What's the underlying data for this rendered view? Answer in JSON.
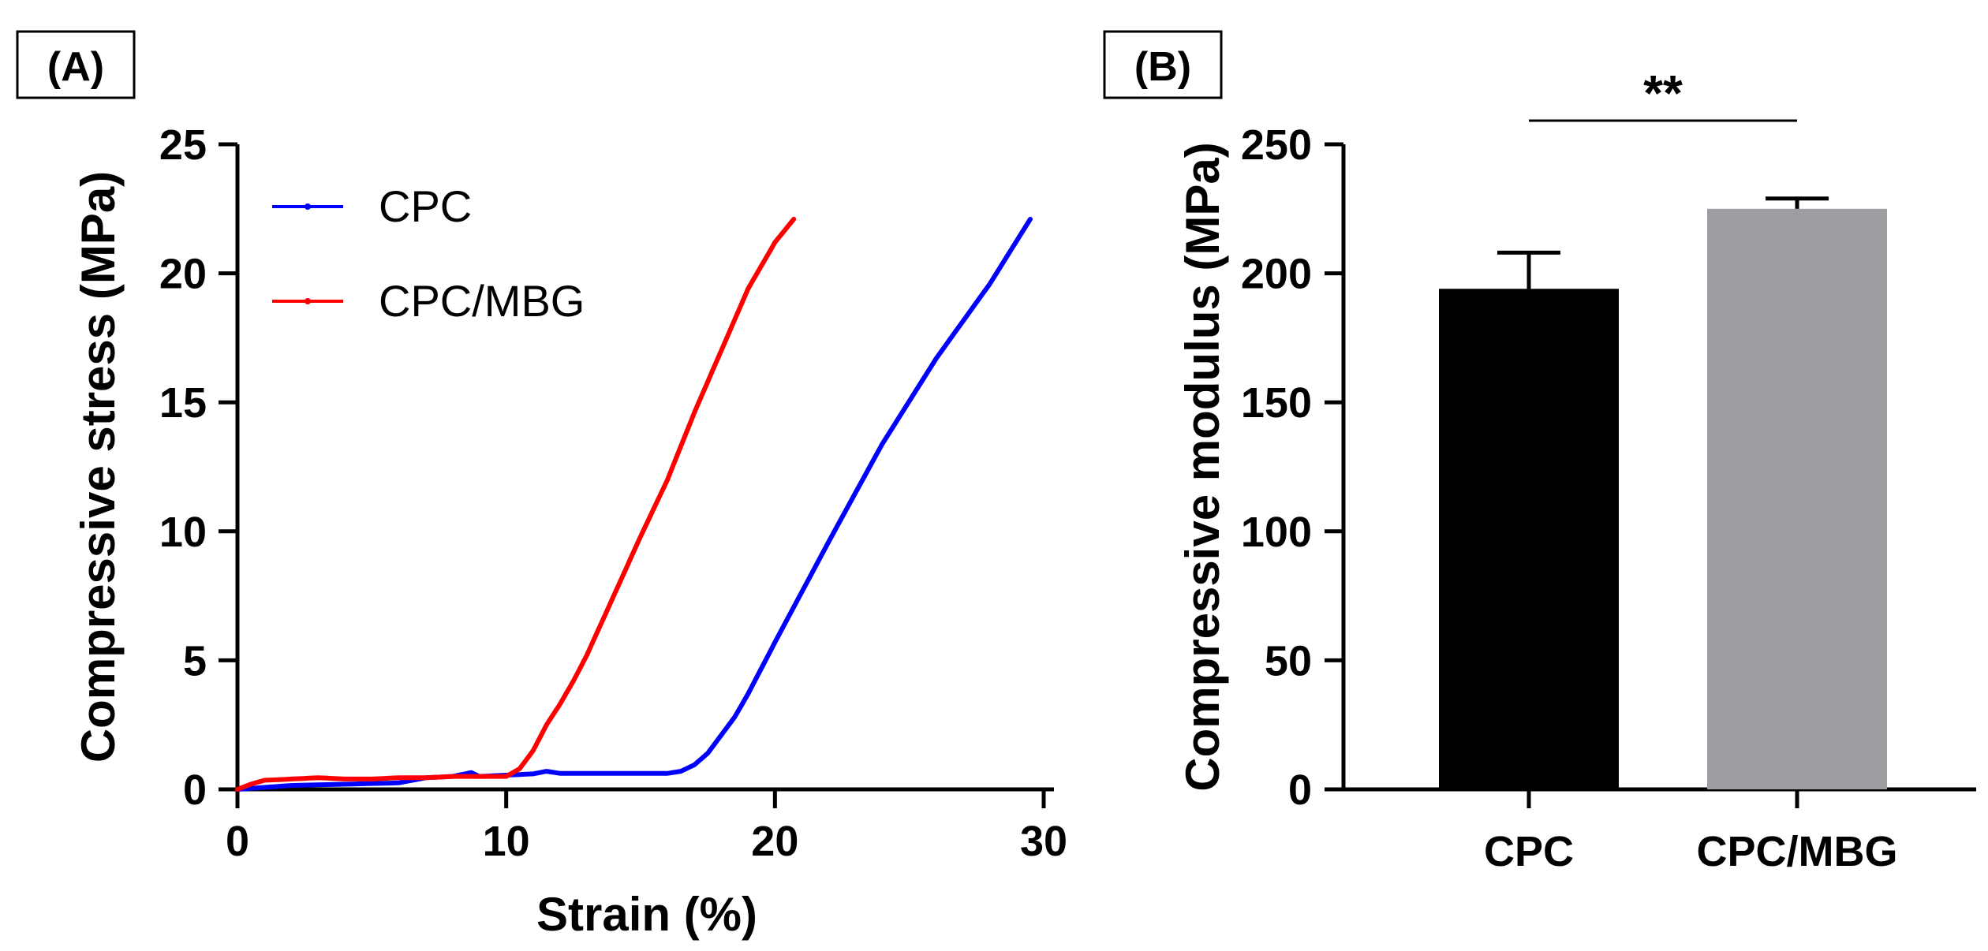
{
  "chart_data": [
    {
      "panel_label": "(A)",
      "type": "line",
      "xlabel": "Strain (%)",
      "ylabel": "Compressive stress (MPa)",
      "xlim": [
        0,
        30
      ],
      "ylim": [
        0,
        25
      ],
      "xticks": [
        "0",
        "10",
        "20",
        "30"
      ],
      "yticks": [
        "0",
        "5",
        "10",
        "15",
        "20",
        "25"
      ],
      "legend_position": "top-left",
      "series": [
        {
          "name": "CPC",
          "color": "#0000ff",
          "x": [
            0,
            2,
            4,
            6,
            7,
            8,
            8.7,
            9,
            10,
            11,
            11.5,
            12,
            14,
            16,
            16.5,
            17,
            17.5,
            18,
            18.5,
            19,
            20,
            22,
            24,
            26,
            28,
            29.5
          ],
          "y": [
            0,
            0.15,
            0.2,
            0.25,
            0.45,
            0.5,
            0.65,
            0.5,
            0.55,
            0.6,
            0.7,
            0.62,
            0.62,
            0.62,
            0.7,
            0.95,
            1.4,
            2.1,
            2.8,
            3.7,
            5.7,
            9.6,
            13.4,
            16.7,
            19.6,
            22.1
          ]
        },
        {
          "name": "CPC/MBG",
          "color": "#ff0000",
          "x": [
            0,
            0.5,
            1,
            2,
            3,
            4,
            5,
            6,
            7,
            8,
            9,
            10,
            10.5,
            11,
            11.5,
            12,
            12.5,
            13,
            14,
            15,
            16,
            17,
            18,
            19,
            20,
            20.7
          ],
          "y": [
            0,
            0.2,
            0.35,
            0.4,
            0.45,
            0.4,
            0.4,
            0.45,
            0.45,
            0.5,
            0.5,
            0.5,
            0.8,
            1.5,
            2.5,
            3.3,
            4.2,
            5.2,
            7.5,
            9.8,
            12.0,
            14.6,
            17.0,
            19.4,
            21.2,
            22.1
          ]
        }
      ]
    },
    {
      "panel_label": "(B)",
      "type": "bar",
      "ylabel": "Compressive modulus (MPa)",
      "ylim": [
        0,
        250
      ],
      "yticks": [
        "0",
        "50",
        "100",
        "150",
        "200",
        "250"
      ],
      "categories": [
        "CPC",
        "CPC/MBG"
      ],
      "values": [
        194,
        225
      ],
      "errors": [
        14,
        4
      ],
      "colors": [
        "#000000",
        "#9e9ea2"
      ],
      "significance": "**"
    }
  ]
}
